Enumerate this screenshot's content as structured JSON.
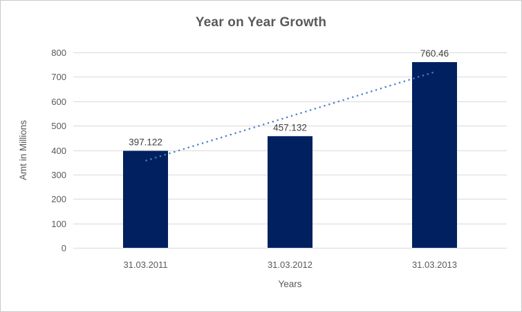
{
  "chart_data": {
    "type": "bar",
    "title": "Year on Year Growth",
    "categories": [
      "31.03.2011",
      "31.03.2012",
      "31.03.2013"
    ],
    "values": [
      397.122,
      457.132,
      760.46
    ],
    "data_labels": [
      "397.122",
      "457.132",
      "760.46"
    ],
    "xlabel": "Years",
    "ylabel": "Amt in Millions",
    "ylim": [
      0,
      800
    ],
    "ytick_step": 100,
    "yticks": [
      0,
      100,
      200,
      300,
      400,
      500,
      600,
      700,
      800
    ],
    "grid": true,
    "legend": "none",
    "bar_color": "#002060",
    "trendline": {
      "type": "linear",
      "style": "dotted",
      "color": "#4a80c2",
      "values_at_categories": [
        356.57,
        538.24,
        719.91
      ]
    },
    "colors": {
      "title": "#595959",
      "axis_text": "#595959",
      "data_label": "#404040",
      "gridline": "#d9d9d9",
      "background": "#ffffff",
      "border": "#c8c8c8"
    }
  }
}
